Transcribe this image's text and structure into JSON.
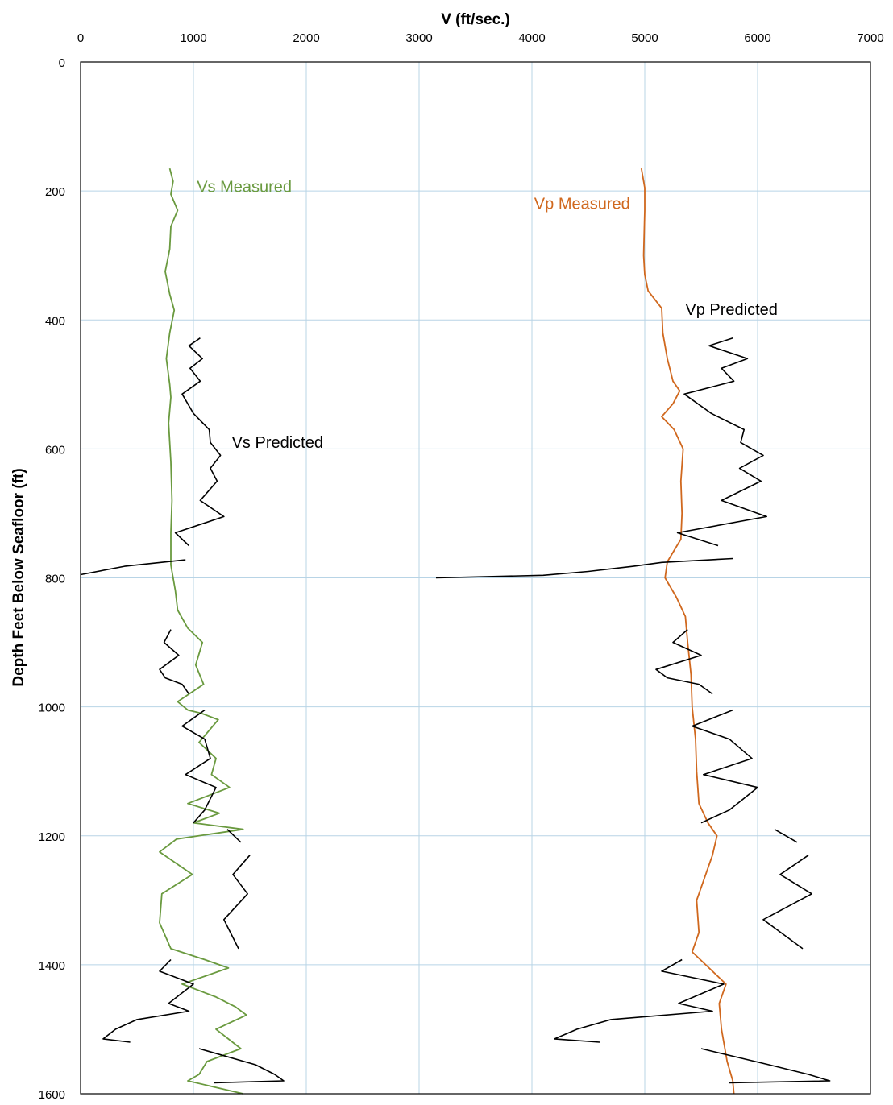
{
  "chart_data": {
    "type": "line",
    "title": "",
    "xlabel": "V (ft/sec.)",
    "ylabel": "Depth Feet Below Seafloor (ft)",
    "xlim": [
      0,
      7000
    ],
    "ylim": [
      1600,
      0
    ],
    "x_axis_position": "top",
    "y_inverted": true,
    "grid": true,
    "x_ticks": [
      "0",
      "1000",
      "2000",
      "3000",
      "4000",
      "5000",
      "6000",
      "7000"
    ],
    "y_ticks": [
      "0",
      "200",
      "400",
      "600",
      "800",
      "1000",
      "1200",
      "1400",
      "1600"
    ],
    "colors": {
      "vs_measured": "#6a9a3f",
      "vp_measured": "#d0681e",
      "predicted": "#000000",
      "grid": "#b8d4e6"
    },
    "annotations": [
      {
        "text": "Vs Measured",
        "color": "#6a9a3f",
        "v": 1030,
        "depth": 202
      },
      {
        "text": "Vp Measured",
        "color": "#d0681e",
        "v": 4020,
        "depth": 228
      },
      {
        "text": "Vp Predicted",
        "color": "#000000",
        "v": 5360,
        "depth": 392
      },
      {
        "text": "Vs Predicted",
        "color": "#000000",
        "v": 1340,
        "depth": 598
      }
    ],
    "series": [
      {
        "name": "Vs Measured",
        "color": "#6a9a3f",
        "points": [
          [
            790,
            165
          ],
          [
            820,
            185
          ],
          [
            800,
            205
          ],
          [
            860,
            230
          ],
          [
            800,
            255
          ],
          [
            790,
            290
          ],
          [
            750,
            325
          ],
          [
            790,
            360
          ],
          [
            830,
            385
          ],
          [
            790,
            420
          ],
          [
            760,
            460
          ],
          [
            790,
            500
          ],
          [
            800,
            520
          ],
          [
            780,
            560
          ],
          [
            800,
            620
          ],
          [
            810,
            680
          ],
          [
            800,
            730
          ],
          [
            800,
            780
          ],
          [
            840,
            820
          ],
          [
            860,
            850
          ],
          [
            950,
            878
          ],
          [
            1080,
            900
          ],
          [
            1020,
            935
          ],
          [
            1090,
            965
          ],
          [
            860,
            992
          ],
          [
            950,
            1005
          ],
          [
            1070,
            1010
          ],
          [
            1220,
            1020
          ],
          [
            1050,
            1055
          ],
          [
            1200,
            1080
          ],
          [
            1160,
            1105
          ],
          [
            1320,
            1125
          ],
          [
            950,
            1150
          ],
          [
            1230,
            1165
          ],
          [
            1000,
            1180
          ],
          [
            1440,
            1190
          ],
          [
            850,
            1205
          ],
          [
            700,
            1225
          ],
          [
            990,
            1260
          ],
          [
            720,
            1290
          ],
          [
            700,
            1335
          ],
          [
            800,
            1375
          ],
          [
            1100,
            1392
          ],
          [
            1310,
            1405
          ],
          [
            900,
            1430
          ],
          [
            1200,
            1450
          ],
          [
            1370,
            1465
          ],
          [
            1470,
            1478
          ],
          [
            1200,
            1500
          ],
          [
            1420,
            1530
          ],
          [
            1120,
            1550
          ],
          [
            1050,
            1570
          ],
          [
            950,
            1580
          ],
          [
            1440,
            1600
          ]
        ]
      },
      {
        "name": "Vp Measured",
        "color": "#d0681e",
        "points": [
          [
            4970,
            165
          ],
          [
            5000,
            195
          ],
          [
            5000,
            230
          ],
          [
            4990,
            300
          ],
          [
            5000,
            330
          ],
          [
            5030,
            355
          ],
          [
            5150,
            382
          ],
          [
            5160,
            420
          ],
          [
            5200,
            460
          ],
          [
            5250,
            495
          ],
          [
            5310,
            510
          ],
          [
            5250,
            530
          ],
          [
            5150,
            550
          ],
          [
            5260,
            570
          ],
          [
            5340,
            600
          ],
          [
            5320,
            650
          ],
          [
            5330,
            700
          ],
          [
            5320,
            740
          ],
          [
            5200,
            775
          ],
          [
            5180,
            800
          ],
          [
            5280,
            830
          ],
          [
            5360,
            860
          ],
          [
            5380,
            900
          ],
          [
            5410,
            950
          ],
          [
            5420,
            1000
          ],
          [
            5450,
            1050
          ],
          [
            5460,
            1100
          ],
          [
            5480,
            1150
          ],
          [
            5560,
            1180
          ],
          [
            5640,
            1200
          ],
          [
            5600,
            1230
          ],
          [
            5540,
            1260
          ],
          [
            5460,
            1300
          ],
          [
            5480,
            1350
          ],
          [
            5420,
            1380
          ],
          [
            5540,
            1400
          ],
          [
            5720,
            1430
          ],
          [
            5660,
            1460
          ],
          [
            5680,
            1500
          ],
          [
            5730,
            1550
          ],
          [
            5780,
            1580
          ],
          [
            5790,
            1600
          ]
        ]
      },
      {
        "name": "Vs Predicted",
        "color": "#000000",
        "segments": [
          [
            [
              1060,
              428
            ],
            [
              960,
              440
            ],
            [
              1080,
              460
            ],
            [
              970,
              475
            ],
            [
              1060,
              495
            ],
            [
              900,
              515
            ],
            [
              1000,
              545
            ],
            [
              1140,
              570
            ],
            [
              1150,
              590
            ],
            [
              1240,
              610
            ],
            [
              1150,
              630
            ],
            [
              1210,
              650
            ],
            [
              1060,
              680
            ],
            [
              1270,
              705
            ],
            [
              840,
              730
            ],
            [
              960,
              750
            ]
          ],
          [
            [
              930,
              772
            ],
            [
              390,
              782
            ],
            [
              0,
              795
            ]
          ],
          [
            [
              800,
              880
            ],
            [
              740,
              900
            ],
            [
              870,
              920
            ],
            [
              700,
              942
            ],
            [
              750,
              955
            ],
            [
              900,
              965
            ],
            [
              960,
              980
            ]
          ],
          [
            [
              1100,
              1005
            ],
            [
              900,
              1030
            ],
            [
              1100,
              1050
            ],
            [
              1150,
              1080
            ],
            [
              930,
              1105
            ],
            [
              1200,
              1125
            ],
            [
              1100,
              1160
            ],
            [
              1000,
              1180
            ]
          ],
          [
            [
              1300,
              1190
            ],
            [
              1420,
              1210
            ]
          ],
          [
            [
              1500,
              1230
            ],
            [
              1350,
              1260
            ],
            [
              1480,
              1290
            ],
            [
              1270,
              1330
            ],
            [
              1400,
              1375
            ]
          ],
          [
            [
              800,
              1392
            ],
            [
              700,
              1410
            ],
            [
              1000,
              1430
            ],
            [
              780,
              1460
            ],
            [
              960,
              1472
            ],
            [
              500,
              1485
            ],
            [
              310,
              1500
            ],
            [
              200,
              1515
            ],
            [
              440,
              1520
            ]
          ],
          [
            [
              1050,
              1530
            ],
            [
              1550,
              1555
            ],
            [
              1720,
              1570
            ],
            [
              1800,
              1580
            ],
            [
              1180,
              1583
            ]
          ]
        ]
      },
      {
        "name": "Vp Predicted",
        "color": "#000000",
        "segments": [
          [
            [
              5780,
              428
            ],
            [
              5570,
              440
            ],
            [
              5910,
              460
            ],
            [
              5680,
              475
            ],
            [
              5790,
              495
            ],
            [
              5350,
              515
            ],
            [
              5590,
              545
            ],
            [
              5880,
              570
            ],
            [
              5850,
              590
            ],
            [
              6050,
              610
            ],
            [
              5840,
              630
            ],
            [
              6030,
              650
            ],
            [
              5680,
              680
            ],
            [
              6080,
              705
            ],
            [
              5290,
              730
            ],
            [
              5650,
              750
            ]
          ],
          [
            [
              5780,
              770
            ],
            [
              5150,
              776
            ],
            [
              4900,
              782
            ],
            [
              4500,
              790
            ],
            [
              4100,
              796
            ],
            [
              3150,
              800
            ]
          ],
          [
            [
              5380,
              880
            ],
            [
              5250,
              900
            ],
            [
              5500,
              920
            ],
            [
              5100,
              942
            ],
            [
              5200,
              955
            ],
            [
              5480,
              965
            ],
            [
              5600,
              980
            ]
          ],
          [
            [
              5780,
              1005
            ],
            [
              5420,
              1030
            ],
            [
              5750,
              1050
            ],
            [
              5950,
              1080
            ],
            [
              5520,
              1105
            ],
            [
              6000,
              1125
            ],
            [
              5750,
              1160
            ],
            [
              5500,
              1180
            ]
          ],
          [
            [
              6150,
              1190
            ],
            [
              6350,
              1210
            ]
          ],
          [
            [
              6450,
              1230
            ],
            [
              6200,
              1260
            ],
            [
              6480,
              1290
            ],
            [
              6050,
              1330
            ],
            [
              6400,
              1375
            ]
          ],
          [
            [
              5330,
              1392
            ],
            [
              5150,
              1410
            ],
            [
              5700,
              1430
            ],
            [
              5300,
              1460
            ],
            [
              5600,
              1472
            ],
            [
              4700,
              1485
            ],
            [
              4400,
              1500
            ],
            [
              4200,
              1515
            ],
            [
              4600,
              1520
            ]
          ],
          [
            [
              5500,
              1530
            ],
            [
              6100,
              1555
            ],
            [
              6450,
              1570
            ],
            [
              6640,
              1580
            ],
            [
              5750,
              1583
            ]
          ]
        ]
      }
    ]
  }
}
